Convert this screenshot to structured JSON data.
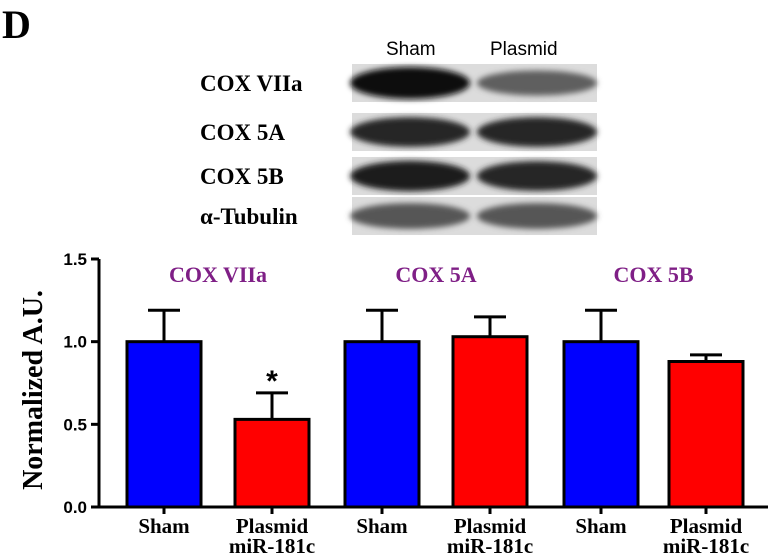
{
  "panel_label": "D",
  "blot": {
    "lanes": [
      "Sham",
      "Plasmid"
    ],
    "rows": [
      {
        "label": "COX VIIa",
        "intensity": [
          1.0,
          0.55
        ]
      },
      {
        "label": "COX 5A",
        "intensity": [
          0.85,
          0.85
        ]
      },
      {
        "label": "COX 5B",
        "intensity": [
          0.9,
          0.85
        ]
      },
      {
        "label": "α-Tubulin",
        "intensity": [
          0.6,
          0.6
        ]
      }
    ]
  },
  "colors": {
    "sham": "#0000ff",
    "plasmid": "#ff0000",
    "group_title": "#7f1f86",
    "outline": "#000000"
  },
  "chart_data": {
    "type": "bar",
    "title": "",
    "xlabel": "",
    "ylabel": "Normalized A.U.",
    "ylim": [
      0,
      1.5
    ],
    "yticks": [
      "0.0",
      "0.5",
      "1.0",
      "1.5"
    ],
    "groups": [
      "COX VIIa",
      "COX 5A",
      "COX 5B"
    ],
    "categories": [
      "Sham",
      "Plasmid miR-181c",
      "Sham",
      "Plasmid miR-181c",
      "Sham",
      "Plasmid miR-181c"
    ],
    "category_lines": [
      [
        "Sham"
      ],
      [
        "Plasmid",
        "miR-181c"
      ],
      [
        "Sham"
      ],
      [
        "Plasmid",
        "miR-181c"
      ],
      [
        "Sham"
      ],
      [
        "Plasmid",
        "miR-181c"
      ]
    ],
    "values": [
      1.0,
      0.53,
      1.0,
      1.03,
      1.0,
      0.88
    ],
    "errors": [
      0.19,
      0.16,
      0.19,
      0.12,
      0.19,
      0.04
    ],
    "bar_colors": [
      "sham",
      "plasmid",
      "sham",
      "plasmid",
      "sham",
      "plasmid"
    ],
    "significance": [
      {
        "bar": 1,
        "label": "*"
      }
    ],
    "grid": false,
    "legend": "none"
  }
}
